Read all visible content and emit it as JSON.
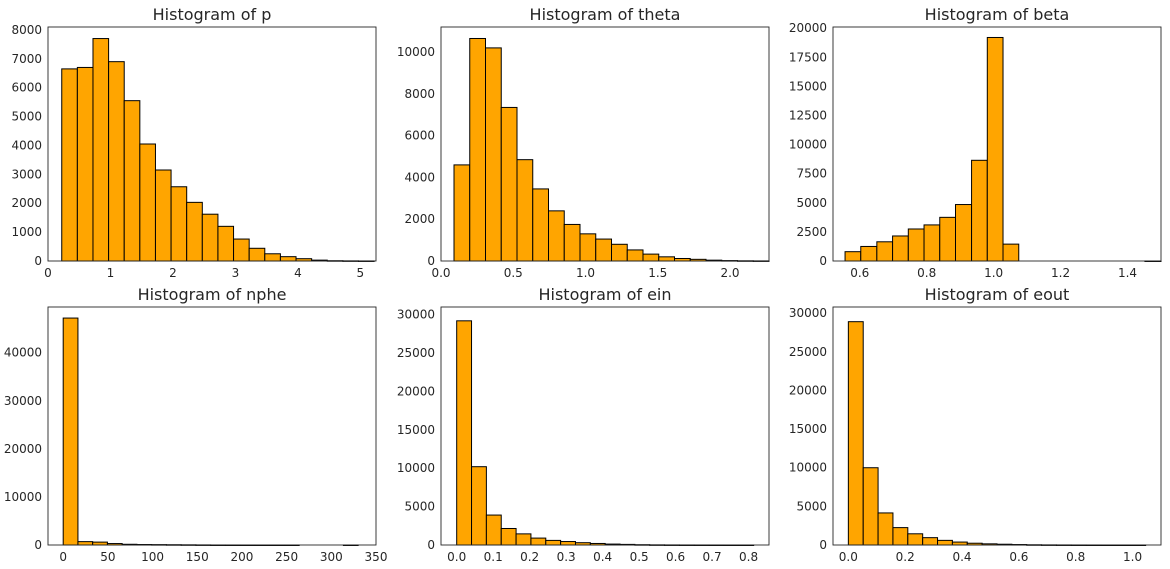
{
  "figure": {
    "bar_color": "#FFA500",
    "edge_color": "#000000",
    "background": "#ffffff"
  },
  "chart_data": [
    {
      "type": "bar",
      "title": "Histogram of p",
      "xlim": [
        0.0,
        5.25
      ],
      "ylim": [
        0,
        8100
      ],
      "xticks": [
        0,
        1,
        2,
        3,
        4,
        5
      ],
      "xtick_labels": [
        "0",
        "1",
        "2",
        "3",
        "4",
        "5"
      ],
      "yticks": [
        0,
        1000,
        2000,
        3000,
        4000,
        5000,
        6000,
        7000,
        8000
      ],
      "ytick_labels": [
        "0",
        "1000",
        "2000",
        "3000",
        "4000",
        "5000",
        "6000",
        "7000",
        "8000"
      ],
      "bin_edges": [
        0.22,
        0.47,
        0.72,
        0.97,
        1.22,
        1.47,
        1.72,
        1.97,
        2.22,
        2.47,
        2.72,
        2.97,
        3.22,
        3.47,
        3.72,
        3.97,
        4.22,
        4.47,
        4.72,
        4.97,
        5.22
      ],
      "values": [
        6650,
        6700,
        7700,
        6900,
        5550,
        4050,
        3150,
        2570,
        2030,
        1620,
        1200,
        760,
        440,
        250,
        150,
        80,
        30,
        10,
        5,
        2
      ]
    },
    {
      "type": "bar",
      "title": "Histogram of theta",
      "xlim": [
        0.0,
        2.27
      ],
      "ylim": [
        0,
        11200
      ],
      "xticks": [
        0,
        0.5,
        1.0,
        1.5,
        2.0
      ],
      "xtick_labels": [
        "0.0",
        "0.5",
        "1.0",
        "1.5",
        "2.0"
      ],
      "yticks": [
        0,
        2000,
        4000,
        6000,
        8000,
        10000
      ],
      "ytick_labels": [
        "0",
        "2000",
        "4000",
        "6000",
        "8000",
        "10000"
      ],
      "bin_edges": [
        0.09,
        0.199,
        0.308,
        0.417,
        0.526,
        0.635,
        0.744,
        0.853,
        0.962,
        1.071,
        1.18,
        1.289,
        1.398,
        1.507,
        1.616,
        1.725,
        1.834,
        1.943,
        2.052,
        2.161,
        2.27
      ],
      "values": [
        4600,
        10650,
        10200,
        7350,
        4850,
        3450,
        2400,
        1750,
        1300,
        1050,
        800,
        530,
        330,
        200,
        120,
        80,
        40,
        20,
        10,
        5
      ]
    },
    {
      "type": "bar",
      "title": "Histogram of beta",
      "xlim": [
        0.52,
        1.5
      ],
      "ylim": [
        0,
        20100
      ],
      "xticks": [
        0.6,
        0.8,
        1.0,
        1.2,
        1.4
      ],
      "xtick_labels": [
        "0.6",
        "0.8",
        "1.0",
        "1.2",
        "1.4"
      ],
      "yticks": [
        0,
        2500,
        5000,
        7500,
        10000,
        12500,
        15000,
        17500,
        20000
      ],
      "ytick_labels": [
        "0",
        "2500",
        "5000",
        "7500",
        "10000",
        "12500",
        "15000",
        "17500",
        "20000"
      ],
      "bin_edges": [
        0.556,
        0.603,
        0.651,
        0.698,
        0.745,
        0.792,
        0.839,
        0.886,
        0.934,
        0.981,
        1.028,
        1.075,
        1.122,
        1.169,
        1.217,
        1.264,
        1.311,
        1.358,
        1.405,
        1.452,
        1.5
      ],
      "values": [
        800,
        1250,
        1650,
        2150,
        2750,
        3100,
        3750,
        4850,
        8650,
        19200,
        1450,
        0,
        0,
        0,
        0,
        0,
        0,
        0,
        0,
        1
      ]
    },
    {
      "type": "bar",
      "title": "Histogram of nphe",
      "xlim": [
        -17,
        350
      ],
      "ylim": [
        0,
        49500
      ],
      "xticks": [
        0,
        50,
        100,
        150,
        200,
        250,
        300,
        350
      ],
      "xtick_labels": [
        "0",
        "50",
        "100",
        "150",
        "200",
        "250",
        "300",
        "350"
      ],
      "yticks": [
        0,
        10000,
        20000,
        30000,
        40000
      ],
      "ytick_labels": [
        "0",
        "10000",
        "20000",
        "30000",
        "40000"
      ],
      "bin_edges": [
        0,
        16.5,
        33,
        49.5,
        66,
        82.5,
        99,
        115.5,
        132,
        148.5,
        165,
        181.5,
        198,
        214.5,
        231,
        247.5,
        264,
        280.5,
        297,
        313.5,
        330
      ],
      "values": [
        47200,
        700,
        600,
        300,
        150,
        100,
        80,
        60,
        40,
        20,
        5,
        3,
        2,
        1,
        1,
        1,
        0,
        0,
        0,
        1
      ]
    },
    {
      "type": "bar",
      "title": "Histogram of ein",
      "xlim": [
        -0.043,
        0.856
      ],
      "ylim": [
        0,
        31000
      ],
      "xticks": [
        0.0,
        0.1,
        0.2,
        0.3,
        0.4,
        0.5,
        0.6,
        0.7,
        0.8
      ],
      "xtick_labels": [
        "0.0",
        "0.1",
        "0.2",
        "0.3",
        "0.4",
        "0.5",
        "0.6",
        "0.7",
        "0.8"
      ],
      "yticks": [
        0,
        5000,
        10000,
        15000,
        20000,
        25000,
        30000
      ],
      "ytick_labels": [
        "0",
        "5000",
        "10000",
        "15000",
        "20000",
        "25000",
        "30000"
      ],
      "bin_edges": [
        0.0,
        0.0407,
        0.0814,
        0.1221,
        0.1628,
        0.2035,
        0.2442,
        0.2849,
        0.3256,
        0.3663,
        0.407,
        0.4477,
        0.4884,
        0.5291,
        0.5698,
        0.6105,
        0.6512,
        0.6919,
        0.7326,
        0.7733,
        0.814
      ],
      "values": [
        29200,
        10200,
        3900,
        2150,
        1450,
        900,
        600,
        450,
        300,
        200,
        120,
        80,
        40,
        20,
        10,
        5,
        3,
        2,
        1,
        1
      ]
    },
    {
      "type": "bar",
      "title": "Histogram of eout",
      "xlim": [
        -0.054,
        1.1
      ],
      "ylim": [
        0,
        30800
      ],
      "xticks": [
        0.0,
        0.2,
        0.4,
        0.6,
        0.8,
        1.0
      ],
      "xtick_labels": [
        "0.0",
        "0.2",
        "0.4",
        "0.6",
        "0.8",
        "1.0"
      ],
      "yticks": [
        0,
        5000,
        10000,
        15000,
        20000,
        25000,
        30000
      ],
      "ytick_labels": [
        "0",
        "5000",
        "10000",
        "15000",
        "20000",
        "25000",
        "30000"
      ],
      "bin_edges": [
        0.0,
        0.0523,
        0.1046,
        0.1569,
        0.2092,
        0.2615,
        0.3138,
        0.3661,
        0.4184,
        0.4707,
        0.523,
        0.5753,
        0.6276,
        0.6799,
        0.7322,
        0.7845,
        0.8368,
        0.8891,
        0.9414,
        0.9937,
        1.046
      ],
      "values": [
        28900,
        10000,
        4150,
        2250,
        1450,
        950,
        600,
        380,
        230,
        150,
        100,
        60,
        30,
        15,
        8,
        4,
        2,
        1,
        1,
        1
      ]
    }
  ]
}
